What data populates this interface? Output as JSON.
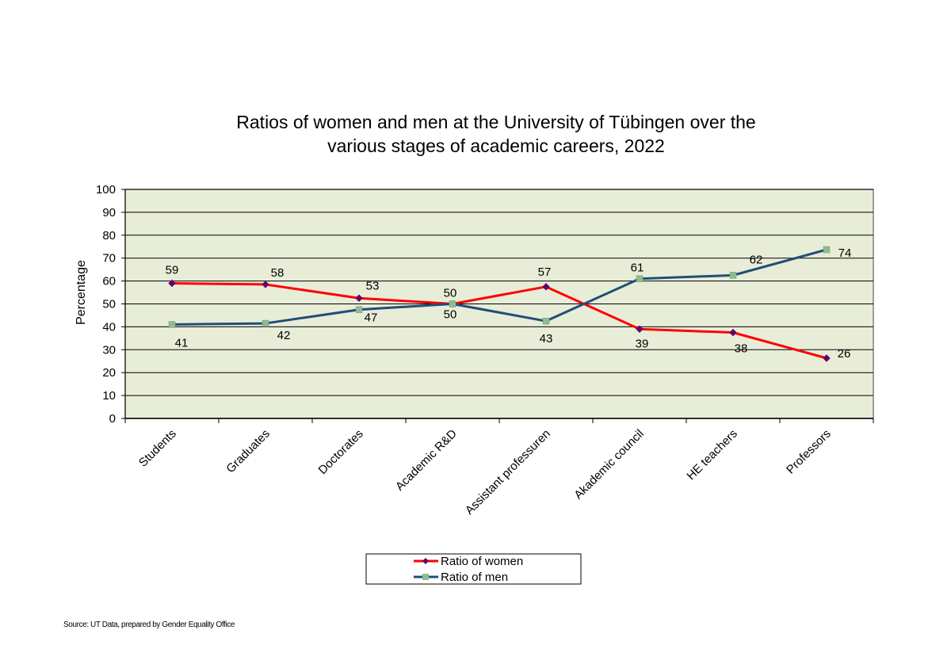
{
  "chart_data": {
    "type": "line",
    "title": [
      "Ratios of women and men at the University of Tübingen over the",
      "various stages of academic careers, 2022"
    ],
    "ylabel": "Percentage",
    "xlabel": "",
    "ylim": [
      0,
      100
    ],
    "yticks": [
      0,
      10,
      20,
      30,
      40,
      50,
      60,
      70,
      80,
      90,
      100
    ],
    "grid": true,
    "legend_position": "bottom",
    "categories": [
      "Students",
      "Graduates",
      "Doctorates",
      "Academic R&D",
      "Assistant professuren",
      "Akademic council",
      "HE teachers",
      "Professors"
    ],
    "series": [
      {
        "name": "Ratio of women",
        "color": "#ff0000",
        "marker": "diamond",
        "marker_color": "#660066",
        "values": [
          59,
          58.5,
          52.5,
          50,
          57.5,
          39,
          37.5,
          26.3
        ],
        "labels": [
          "59",
          "58",
          "53",
          "50",
          "57",
          "39",
          "38",
          "26"
        ]
      },
      {
        "name": "Ratio of men",
        "color": "#1f4e79",
        "marker": "square",
        "marker_color": "#8fbc8f",
        "values": [
          41,
          41.5,
          47.5,
          50,
          42.5,
          61,
          62.5,
          73.7
        ],
        "labels": [
          "41",
          "42",
          "47",
          "50",
          "43",
          "61",
          "62",
          "74"
        ]
      }
    ],
    "plot_background": "#e8edd8",
    "source_note": "Source: UT Data, prepared by Gender Equality Office"
  }
}
